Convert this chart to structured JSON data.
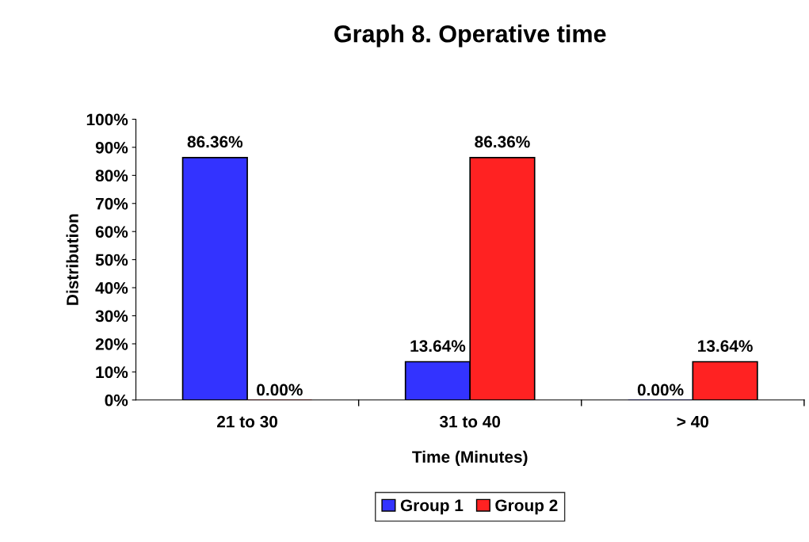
{
  "chart_data": {
    "type": "bar",
    "title": "Graph 8. Operative time",
    "xlabel": "Time (Minutes)",
    "ylabel": "Distribution",
    "categories": [
      "21 to 30",
      "31 to 40",
      "> 40"
    ],
    "series": [
      {
        "name": "Group 1",
        "color": "#3333ff",
        "values": [
          86.36,
          13.64,
          0
        ],
        "value_labels": [
          "86.36%",
          "13.64%",
          "0.00%"
        ]
      },
      {
        "name": "Group 2",
        "color": "#ff2222",
        "values": [
          0,
          86.36,
          13.64
        ],
        "value_labels": [
          "0.00%",
          "86.36%",
          "13.64%"
        ]
      }
    ],
    "ylim": [
      0,
      100
    ],
    "yticks": [
      {
        "value": 0,
        "label": "0%"
      },
      {
        "value": 10,
        "label": "10%"
      },
      {
        "value": 20,
        "label": "20%"
      },
      {
        "value": 30,
        "label": "30%"
      },
      {
        "value": 40,
        "label": "40%"
      },
      {
        "value": 50,
        "label": "50%"
      },
      {
        "value": 60,
        "label": "60%"
      },
      {
        "value": 70,
        "label": "70%"
      },
      {
        "value": 80,
        "label": "80%"
      },
      {
        "value": 90,
        "label": "90%"
      },
      {
        "value": 100,
        "label": "100%"
      }
    ],
    "grid": false,
    "legend": "bottom"
  }
}
